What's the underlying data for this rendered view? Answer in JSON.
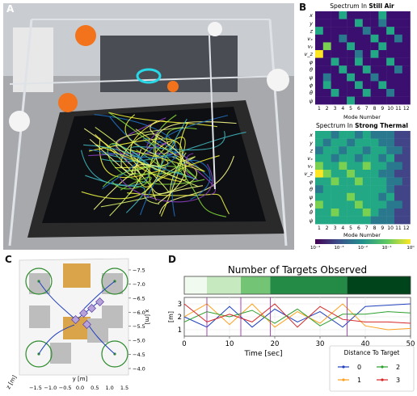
{
  "panel_labels": {
    "a": "A",
    "b": "B",
    "c": "C",
    "d": "D"
  },
  "panelB": {
    "heatmap1": {
      "title_prefix": "Spectrum In ",
      "title_bold": "Still Air",
      "xlabel": "Mode Number"
    },
    "heatmap2": {
      "title_prefix": "Spectrum In ",
      "title_bold": "Strong Thermal",
      "xlabel": "Mode Number"
    },
    "row_labels": [
      "x",
      "y",
      "z",
      "vₓ",
      "vᵧ",
      "v_z",
      "φ",
      "θ",
      "ψ",
      "φ̇",
      "θ̇",
      "ψ̇"
    ],
    "col_labels": [
      "1",
      "2",
      "3",
      "4",
      "5",
      "6",
      "7",
      "8",
      "9",
      "10",
      "11",
      "12"
    ],
    "colorbar_ticks": [
      "10⁻⁴",
      "10⁻³",
      "10⁻²",
      "10⁻¹",
      "10⁰"
    ],
    "colors": [
      "#3b0f70",
      "#414487",
      "#2a788e",
      "#22a884",
      "#7ad151",
      "#fde725"
    ]
  },
  "panelC": {
    "ylabel": "x [m]",
    "xlabel": "y [m]",
    "zlabel": "z [m]",
    "xticks": [
      "−1.5",
      "−1.0",
      "−0.5",
      "0.0",
      "0.5",
      "1.0",
      "1.5"
    ],
    "yticks": [
      "−7.5",
      "−7.0",
      "−6.5",
      "−6.0",
      "−5.5",
      "−5.0",
      "−4.5",
      "−4.0"
    ]
  },
  "panelD": {
    "title": "Number of Targets Observed",
    "xlabel": "Time [sec]",
    "ylabel": "[m]",
    "xticks": [
      "0",
      "10",
      "20",
      "30",
      "40",
      "50"
    ],
    "yticks": [
      "1",
      "2",
      "3"
    ],
    "legend_title": "Distance To Target",
    "legend_items": [
      {
        "label": "0",
        "color": "#1f3fbf"
      },
      {
        "label": "2",
        "color": "#2ca02c"
      },
      {
        "label": "1",
        "color": "#ff9f1c"
      },
      {
        "label": "3",
        "color": "#d62728"
      }
    ],
    "bar_segments": [
      {
        "t0": 0,
        "t1": 5,
        "color": "#f1faee"
      },
      {
        "t0": 5,
        "t1": 12.5,
        "color": "#c7e9c0"
      },
      {
        "t0": 12.5,
        "t1": 19,
        "color": "#74c476"
      },
      {
        "t0": 19,
        "t1": 36,
        "color": "#238b45"
      },
      {
        "t0": 36,
        "t1": 50,
        "color": "#00441b"
      }
    ],
    "event_lines": [
      5,
      12.5,
      19,
      36
    ]
  },
  "chart_data": [
    {
      "type": "heatmap",
      "title": "Spectrum In Still Air",
      "xlabel": "Mode Number",
      "x": [
        "1",
        "2",
        "3",
        "4",
        "5",
        "6",
        "7",
        "8",
        "9",
        "10",
        "11",
        "12"
      ],
      "y": [
        "x",
        "y",
        "z",
        "vₓ",
        "vᵧ",
        "v_z",
        "φ",
        "θ",
        "ψ",
        "φ̇",
        "θ̇",
        "ψ̇"
      ],
      "values": [
        [
          0,
          0,
          0,
          3,
          0,
          0,
          0,
          0,
          3,
          0,
          0,
          0
        ],
        [
          0,
          0,
          0,
          0,
          0,
          3,
          0,
          0,
          2,
          0,
          0,
          0
        ],
        [
          3,
          0,
          0,
          0,
          0,
          0,
          2,
          0,
          0,
          3,
          0,
          0
        ],
        [
          0,
          0,
          0,
          2,
          0,
          0,
          0,
          3,
          0,
          0,
          2,
          0
        ],
        [
          0,
          4,
          0,
          0,
          3,
          0,
          0,
          0,
          3,
          0,
          0,
          0
        ],
        [
          5,
          0,
          0,
          0,
          0,
          2,
          0,
          3,
          0,
          0,
          0,
          0
        ],
        [
          0,
          0,
          3,
          0,
          0,
          3,
          0,
          0,
          0,
          3,
          0,
          0
        ],
        [
          0,
          0,
          0,
          3,
          0,
          0,
          3,
          0,
          0,
          0,
          2,
          0
        ],
        [
          0,
          2,
          0,
          0,
          3,
          0,
          0,
          2,
          0,
          0,
          0,
          0
        ],
        [
          0,
          3,
          0,
          0,
          0,
          3,
          0,
          0,
          3,
          0,
          0,
          0
        ],
        [
          0,
          0,
          3,
          0,
          0,
          0,
          3,
          0,
          0,
          2,
          0,
          0
        ],
        [
          0,
          0,
          0,
          0,
          3,
          0,
          0,
          0,
          0,
          0,
          0,
          0
        ]
      ]
    },
    {
      "type": "heatmap",
      "title": "Spectrum In Strong Thermal",
      "xlabel": "Mode Number",
      "x": [
        "1",
        "2",
        "3",
        "4",
        "5",
        "6",
        "7",
        "8",
        "9",
        "10",
        "11",
        "12"
      ],
      "y": [
        "x",
        "y",
        "z",
        "vₓ",
        "vᵧ",
        "v_z",
        "φ",
        "θ",
        "ψ",
        "φ̇",
        "θ̇",
        "ψ̇"
      ],
      "values": [
        [
          3,
          3,
          2,
          3,
          3,
          2,
          3,
          2,
          2,
          2,
          1,
          1
        ],
        [
          3,
          2,
          3,
          3,
          2,
          3,
          3,
          3,
          2,
          2,
          1,
          1
        ],
        [
          2,
          3,
          3,
          2,
          3,
          3,
          2,
          3,
          3,
          2,
          2,
          1
        ],
        [
          3,
          3,
          2,
          3,
          3,
          2,
          3,
          3,
          2,
          3,
          1,
          1
        ],
        [
          4,
          3,
          3,
          4,
          3,
          3,
          4,
          3,
          3,
          2,
          2,
          1
        ],
        [
          5,
          4,
          3,
          3,
          4,
          3,
          3,
          3,
          2,
          2,
          1,
          1
        ],
        [
          3,
          3,
          4,
          3,
          3,
          4,
          3,
          3,
          3,
          2,
          2,
          1
        ],
        [
          2,
          3,
          3,
          3,
          3,
          3,
          3,
          3,
          3,
          2,
          1,
          1
        ],
        [
          3,
          3,
          3,
          3,
          4,
          3,
          3,
          3,
          2,
          3,
          1,
          1
        ],
        [
          4,
          3,
          3,
          3,
          3,
          4,
          3,
          3,
          3,
          2,
          2,
          1
        ],
        [
          3,
          3,
          4,
          3,
          3,
          3,
          4,
          3,
          2,
          2,
          1,
          1
        ],
        [
          3,
          3,
          3,
          3,
          3,
          3,
          3,
          2,
          2,
          2,
          1,
          1
        ]
      ]
    },
    {
      "type": "line",
      "title": "Number of Targets Observed",
      "xlabel": "Time [sec]",
      "ylabel": "[m]",
      "xlim": [
        0,
        50
      ],
      "ylim": [
        0.5,
        3.5
      ],
      "x": [
        0,
        5,
        10,
        15,
        20,
        25,
        30,
        35,
        40,
        45,
        50
      ],
      "series": [
        {
          "name": "0",
          "color": "#1f3fbf",
          "values": [
            2.0,
            1.2,
            2.8,
            1.2,
            2.6,
            1.6,
            2.4,
            1.2,
            2.8,
            2.9,
            3.0
          ]
        },
        {
          "name": "1",
          "color": "#ff9f1c",
          "values": [
            2.0,
            3.0,
            1.4,
            3.0,
            1.2,
            2.4,
            1.5,
            3.0,
            1.3,
            1.0,
            1.1
          ]
        },
        {
          "name": "2",
          "color": "#2ca02c",
          "values": [
            1.6,
            2.4,
            2.0,
            2.5,
            1.5,
            2.6,
            1.3,
            2.2,
            2.2,
            2.4,
            2.3
          ]
        },
        {
          "name": "3",
          "color": "#d62728",
          "values": [
            3.0,
            1.6,
            2.2,
            1.6,
            3.0,
            1.2,
            2.8,
            1.8,
            1.6,
            1.6,
            1.5
          ]
        }
      ]
    }
  ]
}
